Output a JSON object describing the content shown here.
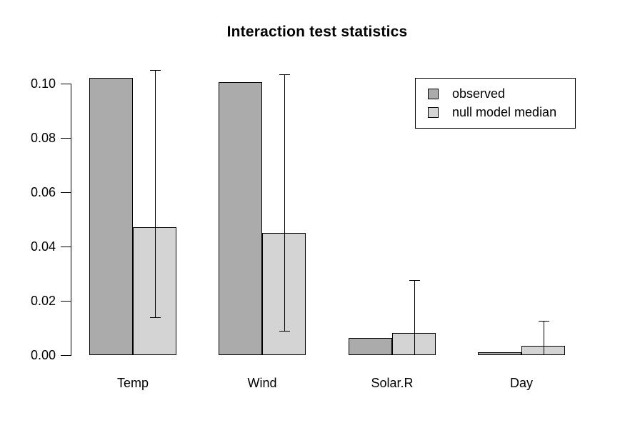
{
  "chart_data": {
    "type": "bar",
    "title": "Interaction test statistics",
    "categories": [
      "Temp",
      "Wind",
      "Solar.R",
      "Day"
    ],
    "series": [
      {
        "name": "observed",
        "color": "#ababab",
        "values": [
          0.102,
          0.1005,
          0.0063,
          0.001
        ]
      },
      {
        "name": "null model median",
        "color": "#d4d4d4",
        "values": [
          0.047,
          0.045,
          0.0082,
          0.0035
        ]
      }
    ],
    "error_bars": {
      "on_series": "null model median",
      "high": [
        0.105,
        0.1035,
        0.0275,
        0.0125
      ],
      "low": [
        0.014,
        0.009,
        0,
        0
      ]
    },
    "xlabel": "",
    "ylabel": "",
    "ylim": [
      0,
      0.1
    ],
    "yticks": [
      0,
      0.02,
      0.04,
      0.06,
      0.08,
      0.1
    ],
    "ytick_labels": [
      "0.00",
      "0.02",
      "0.04",
      "0.06",
      "0.08",
      "0.10"
    ],
    "grid": false,
    "legend_position": "top-right",
    "bar_border_color": "#000000",
    "background_color": "#ffffff"
  }
}
